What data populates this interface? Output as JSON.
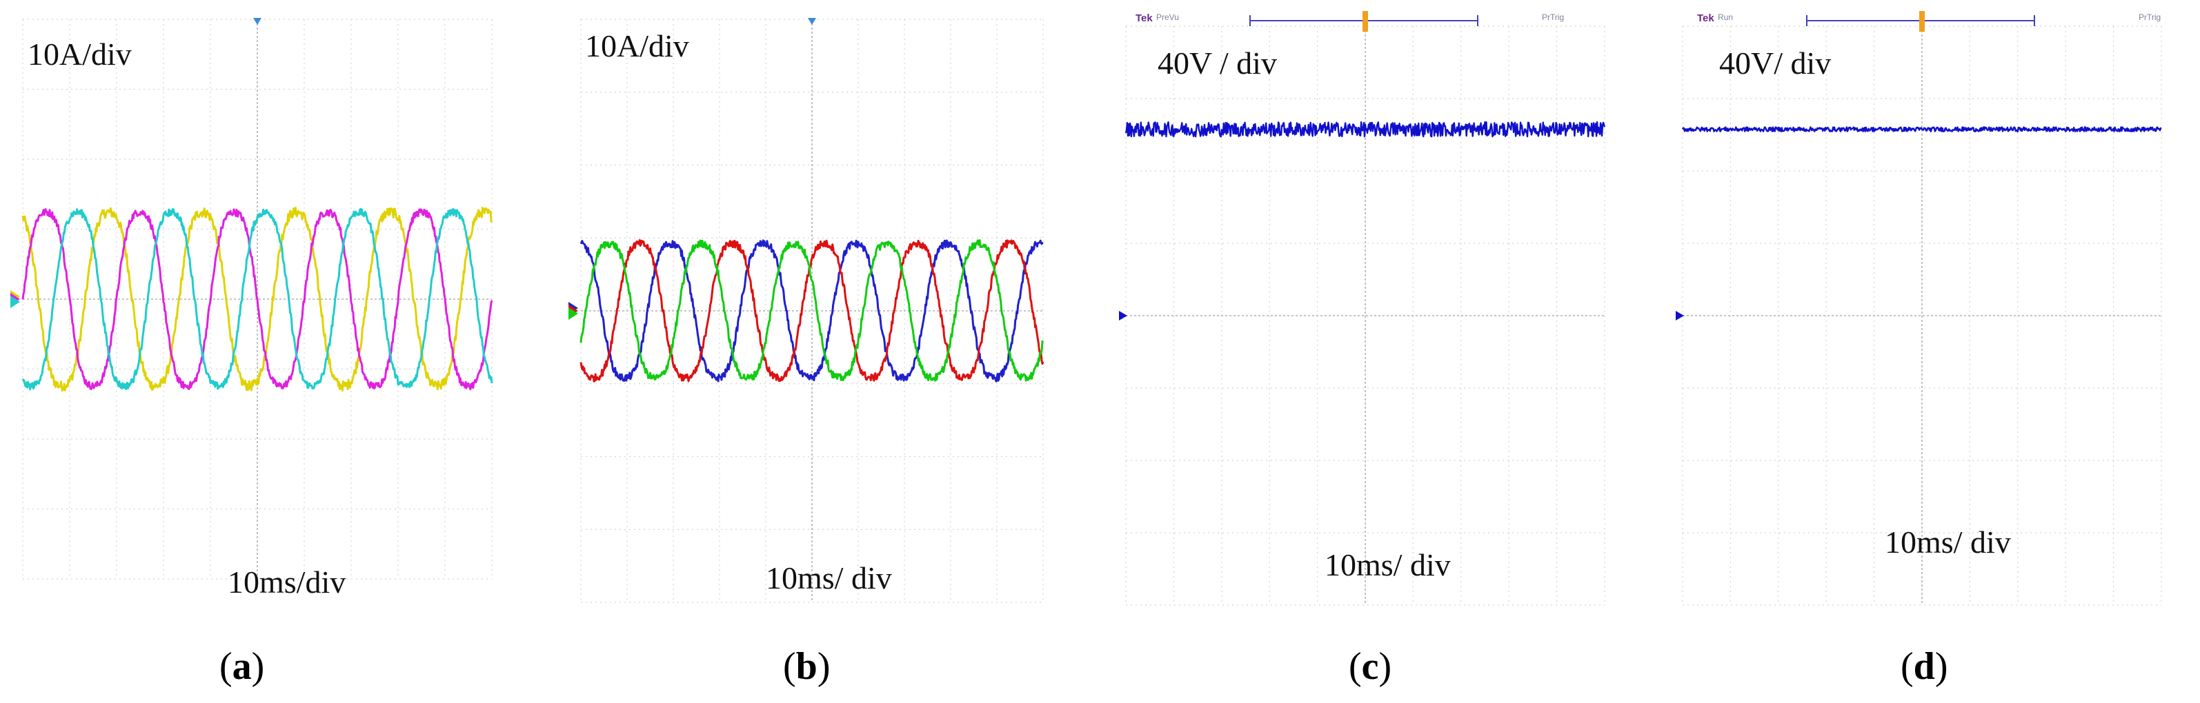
{
  "panels": [
    {
      "id": "a",
      "label": "a",
      "scale_label": "10A/div",
      "time_label": "10ms/div",
      "header": null
    },
    {
      "id": "b",
      "label": "b",
      "scale_label": "10A/div",
      "time_label": "10ms/ div",
      "header": null
    },
    {
      "id": "c",
      "label": "c",
      "scale_label": "40V / div",
      "time_label": "10ms/ div",
      "header": {
        "brand": "Tek",
        "status": "PreVu",
        "trigger": "PrTrig"
      }
    },
    {
      "id": "d",
      "label": "d",
      "scale_label": "40V/ div",
      "time_label": "10ms/ div",
      "header": {
        "brand": "Tek",
        "status": "Run",
        "trigger": "PrTrig"
      }
    }
  ],
  "chart_data": [
    {
      "type": "line",
      "panel": "a",
      "x_unit": "ms",
      "y_unit": "A",
      "x_divisions": 10,
      "y_divisions": 8,
      "ylim": [
        -40,
        40
      ],
      "series": [
        {
          "color": "#e0d200",
          "amplitude": 13.5,
          "frequency_hz": 50,
          "phase_deg": 120,
          "noise": 0.7
        },
        {
          "color": "#e020e0",
          "amplitude": 13.5,
          "frequency_hz": 50,
          "phase_deg": 0,
          "noise": 0.5
        },
        {
          "color": "#20cccc",
          "amplitude": 13.5,
          "frequency_hz": 50,
          "phase_deg": 240,
          "noise": 0.5
        }
      ],
      "grid": true
    },
    {
      "type": "line",
      "panel": "b",
      "x_unit": "ms",
      "y_unit": "A",
      "x_divisions": 10,
      "y_divisions": 8,
      "ylim": [
        -40,
        40
      ],
      "series": [
        {
          "color": "#2020cc",
          "amplitude": 10,
          "frequency_hz": 50,
          "phase_deg": 100,
          "noise": 0.5
        },
        {
          "color": "#dd1111",
          "amplitude": 10,
          "frequency_hz": 50,
          "phase_deg": 220,
          "noise": 0.5
        },
        {
          "color": "#11cc11",
          "amplitude": 10,
          "frequency_hz": 50,
          "phase_deg": 340,
          "noise": 0.5
        }
      ],
      "grid": true
    },
    {
      "type": "line",
      "panel": "c",
      "x_unit": "ms",
      "y_unit": "V",
      "x_divisions": 10,
      "y_divisions": 8,
      "ylim": [
        -160,
        160
      ],
      "series": [
        {
          "color": "#1010cc",
          "dc_level": 103,
          "noise": 4
        }
      ],
      "grid": true
    },
    {
      "type": "line",
      "panel": "d",
      "x_unit": "ms",
      "y_unit": "V",
      "x_divisions": 10,
      "y_divisions": 8,
      "ylim": [
        -160,
        160
      ],
      "series": [
        {
          "color": "#1010cc",
          "dc_level": 103,
          "noise": 1.2
        }
      ],
      "grid": true
    }
  ]
}
